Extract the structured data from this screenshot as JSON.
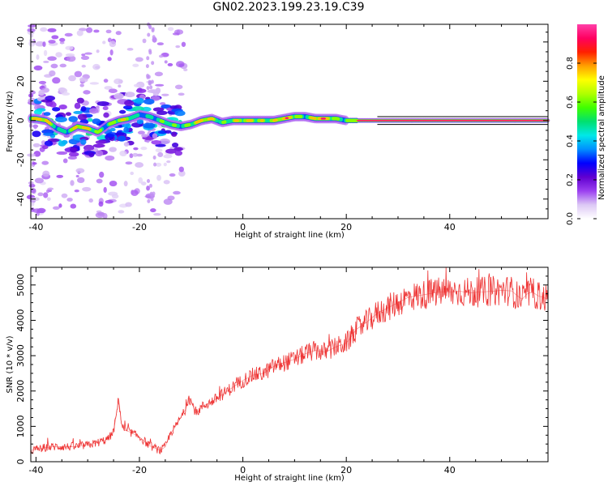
{
  "title": "GN02.2023.199.23.19.C39",
  "chart_data": [
    {
      "type": "heatmap",
      "title": "GN02.2023.199.23.19.C39",
      "xlabel": "Height of straight line (km)",
      "ylabel": "Frequency (Hz)",
      "xlim": [
        -41,
        59
      ],
      "ylim": [
        -50,
        49
      ],
      "x_ticks": [
        -40,
        -20,
        0,
        20,
        40
      ],
      "y_ticks": [
        -40,
        -20,
        0,
        20,
        40
      ],
      "colorbar": {
        "label": "Normalized spectral amplitude",
        "range": [
          0,
          1
        ],
        "ticks": [
          0.0,
          0.2,
          0.4,
          0.6,
          0.8
        ],
        "colors": [
          "#ffffff",
          "#dcc8f5",
          "#9b40f0",
          "#6000d0",
          "#0000ff",
          "#0090ff",
          "#00e8e8",
          "#00e070",
          "#40ff00",
          "#b0ff00",
          "#ffff00",
          "#ffa000",
          "#ff2000",
          "#ff0060",
          "#ff3fa8"
        ]
      },
      "ridge": {
        "description": "dominant frequency trace vs height",
        "x": [
          -40,
          -38,
          -36,
          -34,
          -32,
          -30,
          -28,
          -26,
          -24,
          -22,
          -20,
          -18,
          -16,
          -14,
          -12,
          -10,
          -8,
          -6,
          -4,
          -2,
          0,
          2,
          4,
          6,
          8,
          10,
          12,
          14,
          16,
          18,
          20,
          25,
          30,
          40,
          50,
          58
        ],
        "freq": [
          1,
          0,
          -4,
          -6,
          -3,
          -4,
          -6,
          -2,
          0,
          1,
          3,
          2,
          0,
          -2,
          -3,
          -2,
          0,
          1,
          -1,
          0,
          0,
          0,
          0,
          0,
          1,
          2,
          2,
          1,
          1,
          1,
          0,
          0,
          0,
          0,
          0,
          0
        ],
        "amplitude": [
          0.75,
          0.8,
          0.7,
          0.6,
          0.7,
          0.75,
          0.85,
          0.6,
          0.65,
          0.6,
          0.55,
          0.5,
          0.45,
          0.55,
          0.75,
          0.7,
          0.75,
          0.8,
          0.7,
          0.7,
          0.6,
          0.8,
          0.9,
          0.7,
          0.8,
          0.8,
          0.7,
          0.9,
          0.8,
          0.65,
          0.8,
          0.95,
          0.95,
          0.95,
          0.95,
          0.95
        ]
      }
    },
    {
      "type": "line",
      "xlabel": "Height of straight line (km)",
      "ylabel": "SNR (10 * v/v)",
      "xlim": [
        -41,
        59
      ],
      "ylim": [
        0,
        5500
      ],
      "x_ticks": [
        -40,
        -20,
        0,
        20,
        40
      ],
      "y_ticks": [
        0,
        1000,
        2000,
        3000,
        4000,
        5000
      ],
      "color": "#ee3333",
      "series": [
        {
          "x": [
            -41,
            -38,
            -36,
            -34,
            -32,
            -30,
            -28,
            -26,
            -25,
            -24.5,
            -24,
            -23.5,
            -23,
            -22,
            -20,
            -18,
            -16,
            -15,
            -14,
            -13,
            -12,
            -11,
            -10.5,
            -10,
            -9,
            -8,
            -6,
            -4,
            -2,
            0,
            2,
            4,
            6,
            8,
            10,
            12,
            14,
            16,
            18,
            20,
            22,
            24,
            26,
            28,
            30,
            32,
            34,
            36,
            38,
            40,
            42,
            44,
            46,
            48,
            50,
            52,
            53,
            54,
            55,
            56,
            57,
            58,
            59
          ],
          "y": [
            320,
            400,
            430,
            420,
            430,
            470,
            540,
            650,
            850,
            1300,
            1800,
            1100,
            900,
            850,
            700,
            450,
            320,
            420,
            800,
            1000,
            1250,
            1500,
            1850,
            1700,
            1350,
            1550,
            1700,
            1900,
            2100,
            2300,
            2450,
            2500,
            2700,
            2800,
            2900,
            3050,
            3150,
            3100,
            3250,
            3350,
            3750,
            3950,
            4200,
            4350,
            4500,
            4650,
            4700,
            4750,
            4800,
            4800,
            4820,
            4780,
            4800,
            4820,
            4850,
            4830,
            4700,
            4600,
            4750,
            4800,
            4700,
            4650,
            4600
          ]
        }
      ]
    }
  ]
}
